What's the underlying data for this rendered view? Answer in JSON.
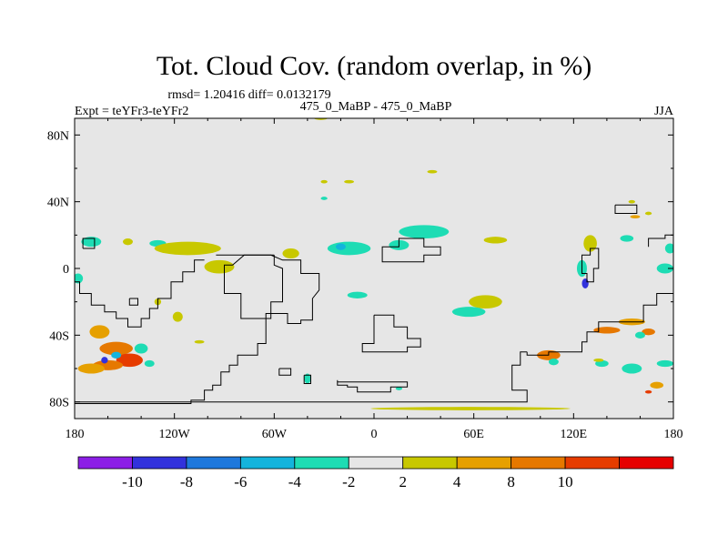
{
  "chart_data": {
    "type": "heatmap",
    "title": "Tot. Cloud Cov. (random overlap, in %)",
    "stats_text": "rmsd= 1.20416 diff= 0.0132179",
    "left_label": "Expt = teYFr3-teYFr2",
    "center_label": "475_0_MaBP - 475_0_MaBP",
    "right_label": "JJA",
    "x_ticks": [
      {
        "value": -180,
        "label": "180"
      },
      {
        "value": -120,
        "label": "120W"
      },
      {
        "value": -60,
        "label": "60W"
      },
      {
        "value": 0,
        "label": "0"
      },
      {
        "value": 60,
        "label": "60E"
      },
      {
        "value": 120,
        "label": "120E"
      },
      {
        "value": 180,
        "label": "180"
      }
    ],
    "y_ticks": [
      {
        "value": 80,
        "label": "80N"
      },
      {
        "value": 40,
        "label": "40N"
      },
      {
        "value": 0,
        "label": "0"
      },
      {
        "value": -40,
        "label": "40S"
      },
      {
        "value": -80,
        "label": "80S"
      }
    ],
    "xlim": [
      -180,
      180
    ],
    "ylim": [
      -90,
      90
    ],
    "colorbar": {
      "colors": [
        "#8c1ee6",
        "#3232dc",
        "#1e78dc",
        "#14b4dc",
        "#1edcb4",
        "#e6e6e6",
        "#c8c800",
        "#e6a000",
        "#e67800",
        "#e63c00",
        "#e60000"
      ],
      "labels": [
        "-10",
        "-8",
        "-6",
        "-4",
        "-2",
        "2",
        "4",
        "8",
        "10"
      ],
      "neutral_color": "#e6e6e6"
    },
    "anomaly_patches": [
      {
        "lon": -170,
        "lat": 16,
        "rlon": 6,
        "rlat": 3,
        "level": 4
      },
      {
        "lon": -130,
        "lat": 15,
        "rlon": 5,
        "rlat": 2,
        "level": 4
      },
      {
        "lon": -148,
        "lat": 16,
        "rlon": 3,
        "rlat": 2,
        "level": 6
      },
      {
        "lon": -112,
        "lat": 12,
        "rlon": 20,
        "rlat": 4,
        "level": 6
      },
      {
        "lon": -93,
        "lat": 1,
        "rlon": 9,
        "rlat": 4,
        "level": 6
      },
      {
        "lon": -50,
        "lat": 9,
        "rlon": 5,
        "rlat": 3,
        "level": 6
      },
      {
        "lon": -15,
        "lat": 12,
        "rlon": 13,
        "rlat": 4,
        "level": 4
      },
      {
        "lon": -20,
        "lat": 13,
        "rlon": 3,
        "rlat": 2,
        "level": 3
      },
      {
        "lon": 30,
        "lat": 22,
        "rlon": 15,
        "rlat": 4,
        "level": 4
      },
      {
        "lon": 15,
        "lat": 14,
        "rlon": 6,
        "rlat": 3,
        "level": 4
      },
      {
        "lon": 73,
        "lat": 17,
        "rlon": 7,
        "rlat": 2,
        "level": 6
      },
      {
        "lon": 67,
        "lat": -20,
        "rlon": 10,
        "rlat": 4,
        "level": 6
      },
      {
        "lon": -10,
        "lat": -16,
        "rlon": 6,
        "rlat": 2,
        "level": 4
      },
      {
        "lon": 57,
        "lat": -26,
        "rlon": 10,
        "rlat": 3,
        "level": 4
      },
      {
        "lon": 130,
        "lat": 15,
        "rlon": 4,
        "rlat": 5,
        "level": 6
      },
      {
        "lon": 125,
        "lat": 0,
        "rlon": 3,
        "rlat": 5,
        "level": 4
      },
      {
        "lon": 127,
        "lat": -9,
        "rlon": 2,
        "rlat": 3,
        "level": 1
      },
      {
        "lon": 175,
        "lat": 0,
        "rlon": 5,
        "rlat": 3,
        "level": 4
      },
      {
        "lon": 152,
        "lat": 18,
        "rlon": 4,
        "rlat": 2,
        "level": 4
      },
      {
        "lon": 178,
        "lat": 12,
        "rlon": 3,
        "rlat": 3,
        "level": 4
      },
      {
        "lon": 157,
        "lat": 31,
        "rlon": 3,
        "rlat": 1,
        "level": 7
      },
      {
        "lon": -178,
        "lat": -6,
        "rlon": 3,
        "rlat": 3,
        "level": 4
      },
      {
        "lon": -165,
        "lat": -38,
        "rlon": 6,
        "rlat": 4,
        "level": 7
      },
      {
        "lon": -155,
        "lat": -48,
        "rlon": 10,
        "rlat": 4,
        "level": 8
      },
      {
        "lon": -147,
        "lat": -55,
        "rlon": 8,
        "rlat": 4,
        "level": 9
      },
      {
        "lon": -160,
        "lat": -58,
        "rlon": 9,
        "rlat": 3,
        "level": 8
      },
      {
        "lon": -170,
        "lat": -60,
        "rlon": 8,
        "rlat": 3,
        "level": 7
      },
      {
        "lon": -140,
        "lat": -48,
        "rlon": 4,
        "rlat": 3,
        "level": 4
      },
      {
        "lon": -155,
        "lat": -52,
        "rlon": 3,
        "rlat": 2,
        "level": 3
      },
      {
        "lon": -162,
        "lat": -55,
        "rlon": 2,
        "rlat": 2,
        "level": 1
      },
      {
        "lon": -135,
        "lat": -57,
        "rlon": 3,
        "rlat": 2,
        "level": 4
      },
      {
        "lon": -105,
        "lat": -44,
        "rlon": 3,
        "rlat": 1,
        "level": 6
      },
      {
        "lon": 155,
        "lat": -32,
        "rlon": 8,
        "rlat": 2,
        "level": 7
      },
      {
        "lon": 140,
        "lat": -37,
        "rlon": 8,
        "rlat": 2,
        "level": 8
      },
      {
        "lon": 165,
        "lat": -38,
        "rlon": 4,
        "rlat": 2,
        "level": 8
      },
      {
        "lon": 160,
        "lat": -40,
        "rlon": 3,
        "rlat": 2,
        "level": 4
      },
      {
        "lon": 105,
        "lat": -52,
        "rlon": 7,
        "rlat": 3,
        "level": 8
      },
      {
        "lon": 108,
        "lat": -56,
        "rlon": 3,
        "rlat": 2,
        "level": 4
      },
      {
        "lon": 137,
        "lat": -57,
        "rlon": 4,
        "rlat": 2,
        "level": 4
      },
      {
        "lon": 155,
        "lat": -60,
        "rlon": 6,
        "rlat": 3,
        "level": 4
      },
      {
        "lon": 175,
        "lat": -57,
        "rlon": 5,
        "rlat": 2,
        "level": 4
      },
      {
        "lon": 170,
        "lat": -70,
        "rlon": 4,
        "rlat": 2,
        "level": 7
      },
      {
        "lon": 165,
        "lat": -74,
        "rlon": 2,
        "rlat": 1,
        "level": 9
      },
      {
        "lon": -40,
        "lat": -66,
        "rlon": 2,
        "rlat": 3,
        "level": 4
      },
      {
        "lon": 15,
        "lat": -72,
        "rlon": 2,
        "rlat": 1,
        "level": 4
      },
      {
        "lon": -30,
        "lat": 52,
        "rlon": 2,
        "rlat": 1,
        "level": 6
      },
      {
        "lon": 35,
        "lat": 58,
        "rlon": 3,
        "rlat": 1,
        "level": 6
      },
      {
        "lon": -15,
        "lat": 52,
        "rlon": 3,
        "rlat": 1,
        "level": 6
      },
      {
        "lon": -32,
        "lat": 90,
        "rlon": 4,
        "rlat": 1,
        "level": 6
      },
      {
        "lon": -30,
        "lat": 42,
        "rlon": 2,
        "rlat": 1,
        "level": 4
      },
      {
        "lon": 155,
        "lat": 40,
        "rlon": 2,
        "rlat": 1,
        "level": 6
      },
      {
        "lon": 165,
        "lat": 33,
        "rlon": 2,
        "rlat": 1,
        "level": 6
      },
      {
        "lon": -130,
        "lat": -20,
        "rlon": 2,
        "rlat": 2,
        "level": 6
      },
      {
        "lon": -118,
        "lat": -29,
        "rlon": 3,
        "rlat": 3,
        "level": 6
      },
      {
        "lon": 58,
        "lat": -84,
        "rlon": 60,
        "rlat": 1,
        "level": 6
      },
      {
        "lon": 135,
        "lat": -55,
        "rlon": 3,
        "rlat": 1,
        "level": 6
      }
    ],
    "coastlines": [
      {
        "name": "americas",
        "points": [
          [
            -95,
            8
          ],
          [
            -78,
            8
          ],
          [
            -62,
            8
          ],
          [
            -55,
            5
          ],
          [
            -44,
            5
          ],
          [
            -44,
            -3
          ],
          [
            -33,
            -3
          ],
          [
            -33,
            -13
          ],
          [
            -37,
            -18
          ],
          [
            -37,
            -31
          ],
          [
            -44,
            -31
          ],
          [
            -44,
            -33
          ],
          [
            -52,
            -33
          ],
          [
            -52,
            -27
          ],
          [
            -65,
            -27
          ],
          [
            -65,
            -45
          ],
          [
            -70,
            -45
          ],
          [
            -70,
            -52
          ],
          [
            -82,
            -52
          ],
          [
            -82,
            -58
          ],
          [
            -87,
            -58
          ],
          [
            -87,
            -62
          ],
          [
            -92,
            -62
          ],
          [
            -92,
            -70
          ],
          [
            -97,
            -70
          ],
          [
            -97,
            -73
          ],
          [
            -102,
            -73
          ],
          [
            -102,
            -79
          ],
          [
            -110,
            -79
          ],
          [
            -110,
            -81
          ],
          [
            -184,
            -81
          ]
        ]
      },
      {
        "name": "island-west",
        "points": [
          [
            -182,
            -8
          ],
          [
            -177,
            -8
          ],
          [
            -177,
            -15
          ],
          [
            -170,
            -15
          ],
          [
            -170,
            -22
          ],
          [
            -162,
            -22
          ],
          [
            -162,
            -26
          ],
          [
            -155,
            -26
          ],
          [
            -155,
            -30
          ],
          [
            -148,
            -30
          ],
          [
            -148,
            -35
          ],
          [
            -140,
            -35
          ],
          [
            -140,
            -30
          ],
          [
            -135,
            -30
          ],
          [
            -135,
            -24
          ],
          [
            -130,
            -24
          ],
          [
            -130,
            -18
          ],
          [
            -122,
            -18
          ],
          [
            -122,
            -8
          ],
          [
            -115,
            -8
          ],
          [
            -115,
            -2
          ],
          [
            -108,
            -2
          ],
          [
            -108,
            5
          ],
          [
            -102,
            5
          ]
        ]
      },
      {
        "name": "small-box-west",
        "points": [
          [
            -175,
            12
          ],
          [
            -168,
            12
          ],
          [
            -168,
            18
          ],
          [
            -175,
            18
          ],
          [
            -175,
            12
          ]
        ]
      },
      {
        "name": "small-box-west2",
        "points": [
          [
            -147,
            -18
          ],
          [
            -142,
            -18
          ],
          [
            -142,
            -22
          ],
          [
            -147,
            -22
          ],
          [
            -147,
            -18
          ]
        ]
      },
      {
        "name": "africa-outline",
        "points": [
          [
            -60,
            8
          ],
          [
            -78,
            8
          ],
          [
            -85,
            2
          ],
          [
            -90,
            2
          ],
          [
            -90,
            -15
          ],
          [
            -80,
            -15
          ],
          [
            -80,
            -30
          ],
          [
            -62,
            -30
          ],
          [
            -62,
            -20
          ],
          [
            -55,
            -20
          ],
          [
            -55,
            0
          ],
          [
            -60,
            2
          ],
          [
            -60,
            8
          ]
        ]
      },
      {
        "name": "north-continent",
        "points": [
          [
            5,
            8
          ],
          [
            5,
            13
          ],
          [
            15,
            13
          ],
          [
            15,
            18
          ],
          [
            30,
            18
          ],
          [
            30,
            13
          ],
          [
            40,
            13
          ],
          [
            40,
            8
          ],
          [
            30,
            8
          ],
          [
            30,
            4
          ],
          [
            5,
            4
          ],
          [
            5,
            8
          ]
        ]
      },
      {
        "name": "south-africa-box",
        "points": [
          [
            0,
            -28
          ],
          [
            12,
            -28
          ],
          [
            12,
            -35
          ],
          [
            20,
            -35
          ],
          [
            20,
            -42
          ],
          [
            28,
            -42
          ],
          [
            28,
            -47
          ],
          [
            20,
            -47
          ],
          [
            20,
            -50
          ],
          [
            -7,
            -50
          ],
          [
            -7,
            -45
          ],
          [
            0,
            -45
          ],
          [
            0,
            -28
          ]
        ]
      },
      {
        "name": "small-south-box",
        "points": [
          [
            -57,
            -60
          ],
          [
            -50,
            -60
          ],
          [
            -50,
            -64
          ],
          [
            -57,
            -64
          ],
          [
            -57,
            -60
          ]
        ]
      },
      {
        "name": "small-south-box2",
        "points": [
          [
            -42,
            -64
          ],
          [
            -38,
            -64
          ],
          [
            -38,
            -69
          ],
          [
            -42,
            -69
          ],
          [
            -42,
            -64
          ]
        ]
      },
      {
        "name": "south-bar",
        "points": [
          [
            -22,
            -67
          ],
          [
            -22,
            -70
          ],
          [
            -16,
            -70
          ],
          [
            -16,
            -71
          ],
          [
            -10,
            -71
          ],
          [
            -10,
            -74
          ],
          [
            10,
            -74
          ],
          [
            10,
            -71
          ],
          [
            20,
            -71
          ],
          [
            20,
            -68
          ],
          [
            -22,
            -68
          ]
        ]
      },
      {
        "name": "antarctic-shelf",
        "points": [
          [
            92,
            -50
          ],
          [
            92,
            -52
          ],
          [
            105,
            -52
          ],
          [
            105,
            -50
          ],
          [
            125,
            -50
          ],
          [
            125,
            -44
          ],
          [
            128,
            -44
          ],
          [
            128,
            -38
          ],
          [
            135,
            -38
          ],
          [
            135,
            -32
          ],
          [
            162,
            -32
          ],
          [
            162,
            -22
          ],
          [
            170,
            -22
          ],
          [
            170,
            -15
          ],
          [
            182,
            -15
          ]
        ]
      },
      {
        "name": "antarctic-west",
        "points": [
          [
            92,
            -50
          ],
          [
            88,
            -50
          ],
          [
            88,
            -58
          ],
          [
            83,
            -58
          ],
          [
            83,
            -73
          ],
          [
            92,
            -73
          ],
          [
            92,
            -80
          ],
          [
            -184,
            -80
          ]
        ]
      },
      {
        "name": "pacific-archipelago",
        "points": [
          [
            130,
            -8
          ],
          [
            128,
            -8
          ],
          [
            128,
            -3
          ],
          [
            125,
            -3
          ],
          [
            125,
            8
          ],
          [
            130,
            8
          ],
          [
            130,
            12
          ],
          [
            135,
            12
          ],
          [
            135,
            0
          ],
          [
            132,
            0
          ],
          [
            132,
            -8
          ],
          [
            130,
            -8
          ]
        ]
      },
      {
        "name": "small-east-box",
        "points": [
          [
            145,
            38
          ],
          [
            158,
            38
          ],
          [
            158,
            33
          ],
          [
            145,
            33
          ],
          [
            145,
            38
          ]
        ]
      },
      {
        "name": "east-bar",
        "points": [
          [
            165,
            13
          ],
          [
            165,
            18
          ],
          [
            175,
            18
          ],
          [
            175,
            20
          ],
          [
            182,
            20
          ]
        ]
      }
    ]
  }
}
